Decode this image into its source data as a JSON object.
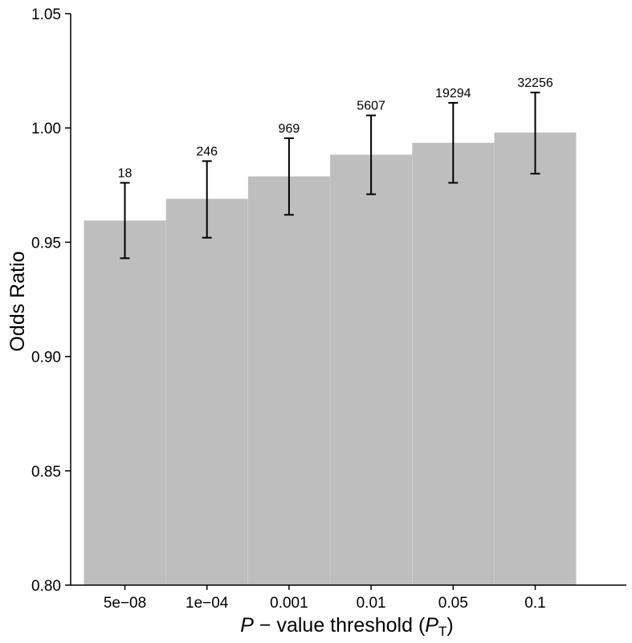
{
  "chart_data": {
    "type": "bar",
    "categories": [
      "5e−08",
      "1e−04",
      "0.001",
      "0.01",
      "0.05",
      "0.1"
    ],
    "values": [
      0.9595,
      0.969,
      0.9788,
      0.9883,
      0.9935,
      0.998
    ],
    "error_lower": [
      0.943,
      0.952,
      0.962,
      0.971,
      0.976,
      0.98
    ],
    "error_upper": [
      0.976,
      0.9855,
      0.9955,
      1.0055,
      1.011,
      1.0155
    ],
    "data_labels": [
      "18",
      "246",
      "969",
      "5607",
      "19294",
      "32256"
    ],
    "ylabel": "Odds Ratio",
    "xlabel": {
      "p_symbol": "P",
      "middle": " − value threshold ",
      "open_paren": "(",
      "sub_symbol": "P",
      "subscript": "T",
      "close_paren": ")"
    },
    "ylim": [
      0.8,
      1.05
    ],
    "yticks": [
      "0.80",
      "0.85",
      "0.90",
      "0.95",
      "1.00",
      "1.05"
    ],
    "ytick_values": [
      0.8,
      0.85,
      0.9,
      0.95,
      1.0,
      1.05
    ],
    "grid": false,
    "colors": {
      "bar": "#bebebe",
      "error_bar": "#000000",
      "axis": "#000000"
    }
  }
}
